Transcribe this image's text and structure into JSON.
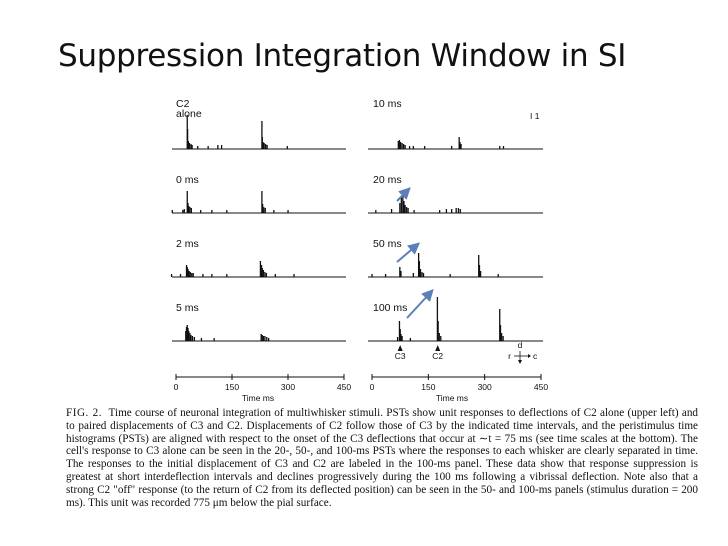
{
  "slide": {
    "title": "Suppression Integration Window in SI"
  },
  "colors": {
    "arrow": "#5b7fb8",
    "ink": "#111111"
  },
  "figure": {
    "left_column": {
      "panels": [
        {
          "label": "C2\nalone",
          "spikes": [
            {
              "t": 30,
              "h": 34
            },
            {
              "t": 31,
              "h": 20
            },
            {
              "t": 33,
              "h": 8
            },
            {
              "t": 36,
              "h": 6
            },
            {
              "t": 40,
              "h": 5
            },
            {
              "t": 43,
              "h": 4
            },
            {
              "t": 58,
              "h": 3
            },
            {
              "t": 86,
              "h": 3
            },
            {
              "t": 112,
              "h": 4
            },
            {
              "t": 122,
              "h": 4
            },
            {
              "t": 230,
              "h": 28
            },
            {
              "t": 231,
              "h": 12
            },
            {
              "t": 233,
              "h": 7
            },
            {
              "t": 236,
              "h": 6
            },
            {
              "t": 240,
              "h": 5
            },
            {
              "t": 244,
              "h": 4
            },
            {
              "t": 298,
              "h": 3
            }
          ]
        },
        {
          "label": "0 ms",
          "spikes": [
            {
              "t": -10,
              "h": 3
            },
            {
              "t": 18,
              "h": 3
            },
            {
              "t": 22,
              "h": 4
            },
            {
              "t": 30,
              "h": 22
            },
            {
              "t": 32,
              "h": 10
            },
            {
              "t": 34,
              "h": 7
            },
            {
              "t": 37,
              "h": 6
            },
            {
              "t": 41,
              "h": 5
            },
            {
              "t": 66,
              "h": 3
            },
            {
              "t": 96,
              "h": 3
            },
            {
              "t": 136,
              "h": 3
            },
            {
              "t": 230,
              "h": 22
            },
            {
              "t": 232,
              "h": 9
            },
            {
              "t": 235,
              "h": 6
            },
            {
              "t": 239,
              "h": 5
            },
            {
              "t": 262,
              "h": 3
            },
            {
              "t": 300,
              "h": 3
            }
          ]
        },
        {
          "label": "2 ms",
          "spikes": [
            {
              "t": -12,
              "h": 3
            },
            {
              "t": 12,
              "h": 3
            },
            {
              "t": 28,
              "h": 12
            },
            {
              "t": 30,
              "h": 10
            },
            {
              "t": 32,
              "h": 8
            },
            {
              "t": 35,
              "h": 6
            },
            {
              "t": 38,
              "h": 5
            },
            {
              "t": 42,
              "h": 4
            },
            {
              "t": 46,
              "h": 4
            },
            {
              "t": 72,
              "h": 3
            },
            {
              "t": 96,
              "h": 3
            },
            {
              "t": 136,
              "h": 3
            },
            {
              "t": 226,
              "h": 16
            },
            {
              "t": 229,
              "h": 12
            },
            {
              "t": 231,
              "h": 9
            },
            {
              "t": 234,
              "h": 7
            },
            {
              "t": 238,
              "h": 5
            },
            {
              "t": 242,
              "h": 4
            },
            {
              "t": 266,
              "h": 3
            },
            {
              "t": 316,
              "h": 3
            }
          ]
        },
        {
          "label": "5 ms",
          "spikes": [
            {
              "t": 26,
              "h": 10
            },
            {
              "t": 28,
              "h": 14
            },
            {
              "t": 30,
              "h": 16
            },
            {
              "t": 32,
              "h": 13
            },
            {
              "t": 34,
              "h": 10
            },
            {
              "t": 37,
              "h": 8
            },
            {
              "t": 40,
              "h": 6
            },
            {
              "t": 44,
              "h": 5
            },
            {
              "t": 49,
              "h": 4
            },
            {
              "t": 68,
              "h": 3
            },
            {
              "t": 102,
              "h": 3
            },
            {
              "t": 228,
              "h": 7
            },
            {
              "t": 231,
              "h": 6
            },
            {
              "t": 234,
              "h": 5
            },
            {
              "t": 238,
              "h": 5
            },
            {
              "t": 243,
              "h": 4
            },
            {
              "t": 248,
              "h": 3
            }
          ]
        }
      ],
      "x_ticks": [
        {
          "value": 0,
          "label": "0"
        },
        {
          "value": 150,
          "label": "150"
        },
        {
          "value": 300,
          "label": "300"
        },
        {
          "value": 450,
          "label": "450"
        }
      ],
      "x_label": "Time  ms"
    },
    "right_column": {
      "panels": [
        {
          "label": "10 ms",
          "spikes": [
            {
              "t": 70,
              "h": 8
            },
            {
              "t": 73,
              "h": 9
            },
            {
              "t": 76,
              "h": 7
            },
            {
              "t": 80,
              "h": 6
            },
            {
              "t": 84,
              "h": 5
            },
            {
              "t": 88,
              "h": 4
            },
            {
              "t": 100,
              "h": 3
            },
            {
              "t": 110,
              "h": 3
            },
            {
              "t": 140,
              "h": 3
            },
            {
              "t": 212,
              "h": 3
            },
            {
              "t": 232,
              "h": 12
            },
            {
              "t": 234,
              "h": 7
            },
            {
              "t": 237,
              "h": 5
            },
            {
              "t": 340,
              "h": 3
            },
            {
              "t": 350,
              "h": 3
            }
          ]
        },
        {
          "label": "20 ms",
          "spikes": [
            {
              "t": 10,
              "h": 3
            },
            {
              "t": 52,
              "h": 4
            },
            {
              "t": 74,
              "h": 10
            },
            {
              "t": 78,
              "h": 16
            },
            {
              "t": 82,
              "h": 18
            },
            {
              "t": 85,
              "h": 12
            },
            {
              "t": 88,
              "h": 8
            },
            {
              "t": 92,
              "h": 6
            },
            {
              "t": 96,
              "h": 5
            },
            {
              "t": 112,
              "h": 3
            },
            {
              "t": 180,
              "h": 3
            },
            {
              "t": 198,
              "h": 4
            },
            {
              "t": 212,
              "h": 4
            },
            {
              "t": 224,
              "h": 5
            },
            {
              "t": 230,
              "h": 5
            },
            {
              "t": 235,
              "h": 4
            }
          ]
        },
        {
          "label": "50 ms",
          "spikes": [
            {
              "t": 0,
              "h": 3
            },
            {
              "t": 36,
              "h": 3
            },
            {
              "t": 74,
              "h": 10
            },
            {
              "t": 77,
              "h": 6
            },
            {
              "t": 110,
              "h": 4
            },
            {
              "t": 124,
              "h": 24
            },
            {
              "t": 126,
              "h": 16
            },
            {
              "t": 129,
              "h": 8
            },
            {
              "t": 133,
              "h": 5
            },
            {
              "t": 137,
              "h": 4
            },
            {
              "t": 208,
              "h": 3
            },
            {
              "t": 284,
              "h": 22
            },
            {
              "t": 286,
              "h": 12
            },
            {
              "t": 289,
              "h": 6
            },
            {
              "t": 336,
              "h": 3
            }
          ]
        },
        {
          "label": "100 ms",
          "spikes": [
            {
              "t": 68,
              "h": 4
            },
            {
              "t": 73,
              "h": 20
            },
            {
              "t": 75,
              "h": 12
            },
            {
              "t": 77,
              "h": 7
            },
            {
              "t": 80,
              "h": 5
            },
            {
              "t": 102,
              "h": 3
            },
            {
              "t": 174,
              "h": 44
            },
            {
              "t": 176,
              "h": 20
            },
            {
              "t": 179,
              "h": 8
            },
            {
              "t": 183,
              "h": 5
            },
            {
              "t": 340,
              "h": 32
            },
            {
              "t": 342,
              "h": 16
            },
            {
              "t": 345,
              "h": 8
            },
            {
              "t": 349,
              "h": 5
            }
          ]
        }
      ],
      "x_ticks": [
        {
          "value": 0,
          "label": "0"
        },
        {
          "value": 150,
          "label": "150"
        },
        {
          "value": 300,
          "label": "300"
        },
        {
          "value": 450,
          "label": "450"
        }
      ],
      "x_label": "Time  ms",
      "markers": [
        {
          "t": 75,
          "label": "C3"
        },
        {
          "t": 175,
          "label": "C2"
        }
      ],
      "direction_labels": {
        "d": "d",
        "r": "r",
        "c": "c"
      },
      "scale_glyph": "I 1"
    }
  },
  "caption": {
    "fig_label": "FIG. 2.",
    "text": "Time course of neuronal integration of multiwhisker stimuli. PSTs show unit responses to deflections of C2 alone (upper left) and to paired displacements of C3 and C2. Displacements of C2 follow those of C3 by the indicated time intervals, and the peristimulus time histograms (PSTs) are aligned with respect to the onset of the C3 deflections that occur at ∼t = 75 ms (see time scales at the bottom). The cell's response to C3 alone can be seen in the 20-, 50-, and 100-ms PSTs where the responses to each whisker are clearly separated in time. The responses to the initial displacement of C3 and C2 are labeled in the 100-ms panel. These data show that response suppression is greatest at short interdeflection intervals and declines progressively during the 100 ms following a vibrissal deflection. Note also that a strong C2 \"off\" response (to the return of C2 from its deflected position) can be seen in the 50- and 100-ms panels (stimulus duration = 200 ms). This unit was recorded 775 μm below the pial surface."
  }
}
